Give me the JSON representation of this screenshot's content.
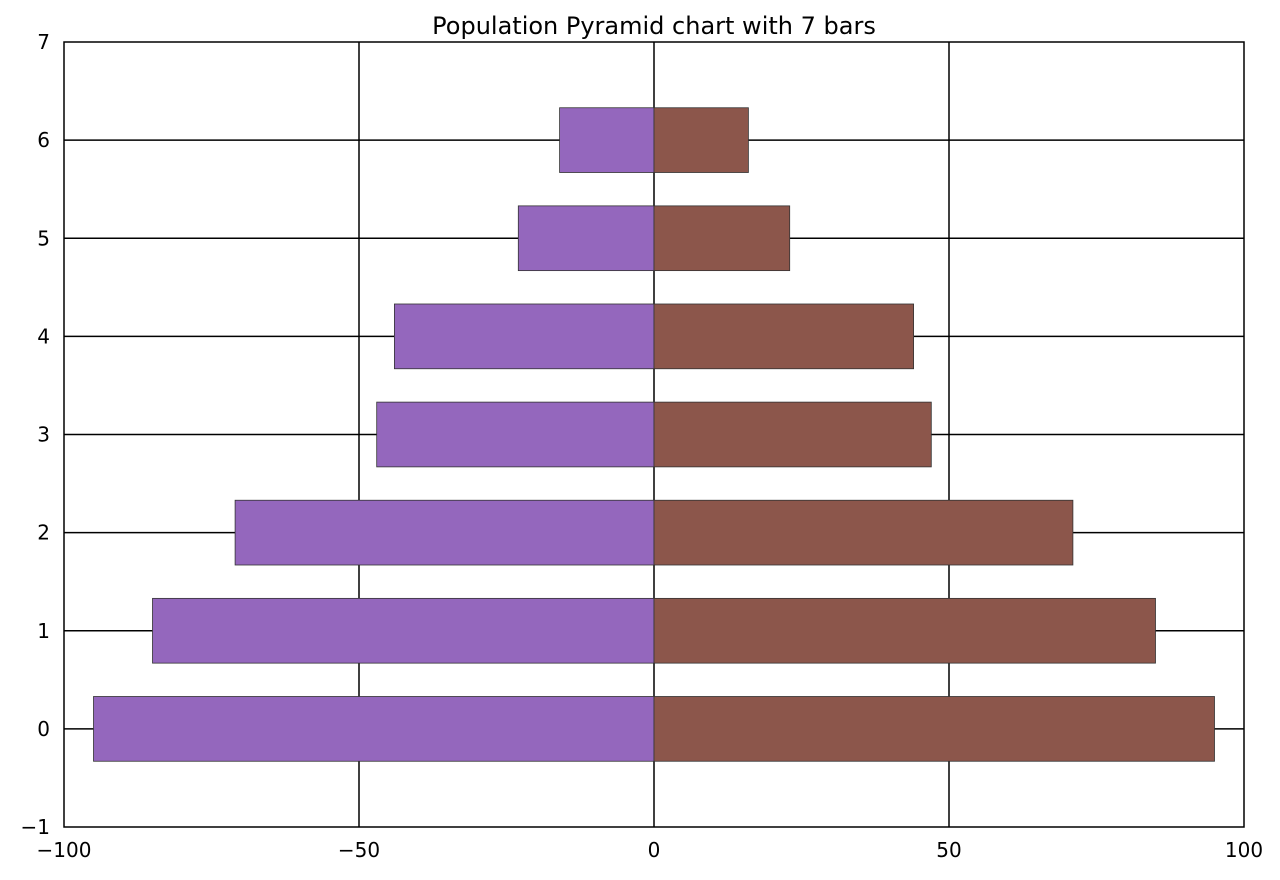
{
  "chart_data": {
    "type": "bar",
    "orientation": "horizontal",
    "title": "Population Pyramid chart with 7 bars",
    "xlabel": "",
    "ylabel": "",
    "categories": [
      "0",
      "1",
      "2",
      "3",
      "4",
      "5",
      "6"
    ],
    "series": [
      {
        "color": "#9467bd",
        "values": [
          -95,
          -85,
          -71,
          -47,
          -44,
          -23,
          -16
        ]
      },
      {
        "color": "#8c564b",
        "values": [
          95,
          85,
          71,
          47,
          44,
          23,
          16
        ]
      }
    ],
    "xlim": [
      -100,
      100
    ],
    "ylim": [
      -1,
      7
    ],
    "xticks": [
      -100,
      -50,
      0,
      50,
      100
    ],
    "xtick_labels": [
      "−100",
      "−50",
      "0",
      "50",
      "100"
    ],
    "yticks": [
      -1,
      0,
      1,
      2,
      3,
      4,
      5,
      6,
      7
    ],
    "ytick_labels": [
      "−1",
      "0",
      "1",
      "2",
      "3",
      "4",
      "5",
      "6",
      "7"
    ],
    "grid": true,
    "legend": "none"
  }
}
